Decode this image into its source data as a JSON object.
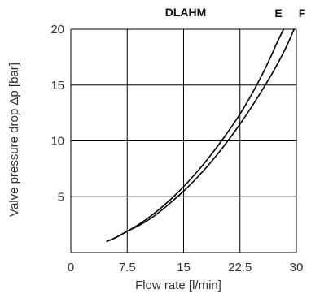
{
  "chart_data": {
    "type": "line",
    "title": "DLAHM",
    "xlabel": "Flow rate [l/min]",
    "ylabel": "Valve pressure drop Δp [bar]",
    "xlim": [
      0,
      30
    ],
    "ylim": [
      0,
      20
    ],
    "x_ticks": [
      "0",
      "7.5",
      "15",
      "22.5",
      "30"
    ],
    "y_ticks": [
      "5",
      "10",
      "15",
      "20"
    ],
    "x_tick_values": [
      0,
      7.5,
      15,
      22.5,
      30
    ],
    "y_tick_values": [
      5,
      10,
      15,
      20
    ],
    "grid": true,
    "series": [
      {
        "name": "E",
        "x": [
          4.8,
          6,
          7.5,
          9,
          10.5,
          12,
          13.5,
          15,
          16.5,
          18,
          19.5,
          21,
          22.5,
          24,
          25.5,
          26.5,
          27.5,
          28.3
        ],
        "y": [
          1.0,
          1.35,
          1.9,
          2.5,
          3.2,
          4.0,
          4.9,
          5.9,
          7.0,
          8.2,
          9.5,
          10.9,
          12.4,
          14.1,
          16.0,
          17.4,
          18.9,
          20.0
        ]
      },
      {
        "name": "F",
        "x": [
          4.8,
          6,
          7.5,
          9,
          10.5,
          12,
          13.5,
          15,
          16.5,
          18,
          19.5,
          21,
          22.5,
          24,
          25.5,
          27,
          28.5,
          29.7
        ],
        "y": [
          1.0,
          1.35,
          1.9,
          2.4,
          3.0,
          3.75,
          4.6,
          5.5,
          6.5,
          7.6,
          8.8,
          10.1,
          11.5,
          13.0,
          14.6,
          16.3,
          18.2,
          20.0
        ]
      }
    ],
    "colors": {
      "curve": "#000000",
      "grid": "#000000",
      "text": "#333333"
    }
  }
}
